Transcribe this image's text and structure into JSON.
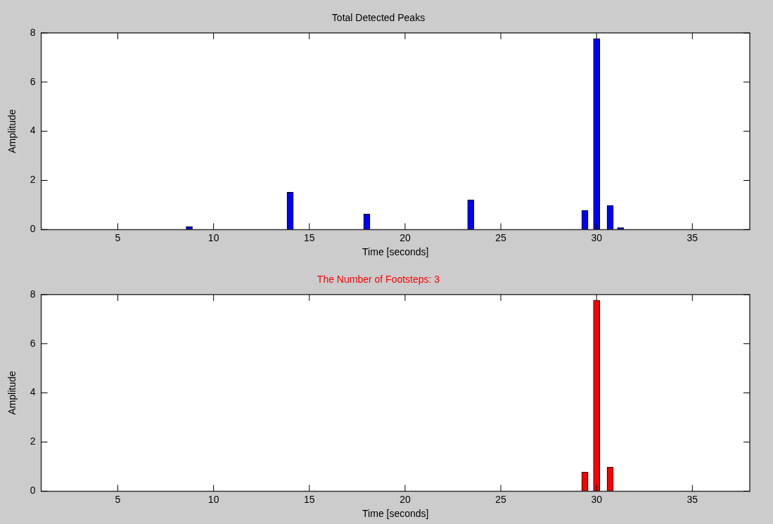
{
  "chart_data": [
    {
      "type": "bar",
      "title": "Total Detected Peaks",
      "xlabel": "Time [seconds]",
      "ylabel": "Amplitude",
      "x": [
        8.73,
        14.0,
        18.0,
        23.43,
        29.39,
        30.0,
        30.71,
        31.25
      ],
      "values": [
        0.12,
        1.52,
        0.63,
        1.21,
        0.78,
        7.77,
        0.98,
        0.08
      ],
      "color": "#0000ff",
      "xlim": [
        1,
        38
      ],
      "xticks": [
        5,
        10,
        15,
        20,
        25,
        30,
        35
      ],
      "ylim": [
        0,
        8
      ],
      "yticks": [
        0,
        2,
        4,
        6,
        8
      ],
      "grid": false,
      "legend": false
    },
    {
      "type": "bar",
      "title": "The Number of Footsteps: 3",
      "xlabel": "Time [seconds]",
      "ylabel": "Amplitude",
      "x": [
        29.39,
        30.0,
        30.71
      ],
      "values": [
        0.78,
        7.77,
        0.98
      ],
      "color": "#ff0000",
      "xlim": [
        1,
        38
      ],
      "xticks": [
        5,
        10,
        15,
        20,
        25,
        30,
        35
      ],
      "ylim": [
        0,
        8
      ],
      "yticks": [
        0,
        2,
        4,
        6,
        8
      ],
      "grid": false,
      "legend": false
    }
  ]
}
